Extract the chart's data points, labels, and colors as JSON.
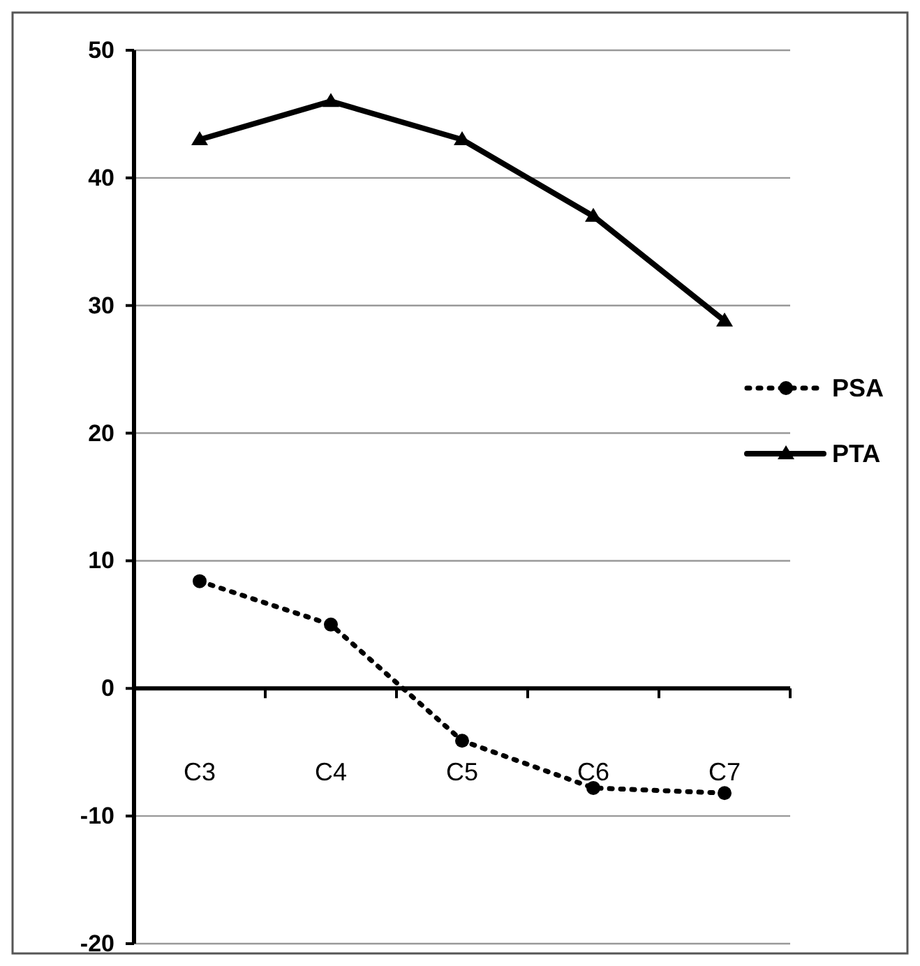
{
  "chart_data": {
    "type": "line",
    "categories": [
      "C3",
      "C4",
      "C5",
      "C6",
      "C7"
    ],
    "series": [
      {
        "name": "PSA",
        "color": "#000000",
        "values": [
          8.4,
          5,
          -4.1,
          -7.8,
          -8.2
        ],
        "marker": "circle",
        "line_style": "dotted"
      },
      {
        "name": "PTA",
        "color": "#000000",
        "values": [
          43,
          46,
          43,
          37,
          28.8
        ],
        "marker": "triangle",
        "line_style": "solid"
      }
    ],
    "ylim": [
      -20,
      50
    ],
    "yticks": [
      -20,
      -10,
      0,
      10,
      20,
      30,
      40,
      50
    ],
    "grid": "y",
    "legend": "right"
  }
}
